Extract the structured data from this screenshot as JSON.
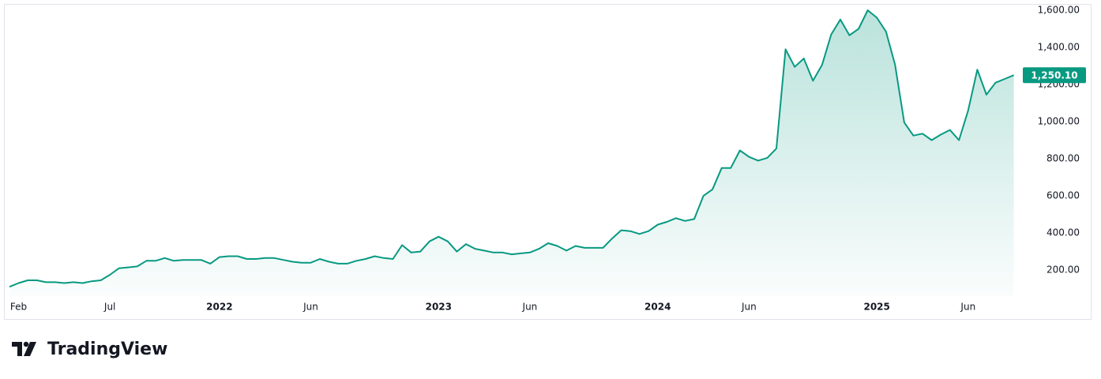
{
  "chart_data": {
    "type": "area",
    "color": "#089981",
    "categories": [
      null,
      "Feb",
      null,
      null,
      null,
      null,
      null,
      null,
      null,
      null,
      null,
      "Jul",
      null,
      null,
      null,
      null,
      null,
      null,
      null,
      null,
      null,
      null,
      null,
      "2022",
      null,
      null,
      null,
      null,
      null,
      null,
      null,
      null,
      null,
      "Jun",
      null,
      null,
      null,
      null,
      null,
      null,
      null,
      null,
      null,
      null,
      null,
      null,
      null,
      "2023",
      null,
      null,
      null,
      null,
      null,
      null,
      null,
      null,
      null,
      "Jun",
      null,
      null,
      null,
      null,
      null,
      null,
      null,
      null,
      null,
      null,
      null,
      null,
      null,
      "2024",
      null,
      null,
      null,
      null,
      null,
      null,
      null,
      null,
      null,
      "Jun",
      null,
      null,
      null,
      null,
      null,
      null,
      null,
      null,
      null,
      null,
      null,
      null,
      null,
      "2025",
      null,
      null,
      null,
      null,
      null,
      null,
      null,
      null,
      null,
      "Jun",
      null,
      null,
      null,
      null,
      null
    ],
    "values": [
      110,
      130,
      145,
      145,
      135,
      135,
      130,
      135,
      130,
      140,
      145,
      175,
      210,
      215,
      220,
      250,
      250,
      265,
      250,
      255,
      255,
      255,
      235,
      270,
      275,
      275,
      260,
      260,
      265,
      265,
      255,
      245,
      240,
      240,
      260,
      245,
      235,
      235,
      250,
      260,
      275,
      265,
      260,
      335,
      295,
      300,
      355,
      380,
      355,
      300,
      340,
      315,
      305,
      295,
      295,
      285,
      290,
      295,
      315,
      345,
      330,
      305,
      330,
      320,
      320,
      320,
      370,
      415,
      410,
      395,
      410,
      445,
      460,
      480,
      465,
      475,
      600,
      635,
      750,
      750,
      845,
      810,
      790,
      805,
      855,
      1390,
      1295,
      1340,
      1220,
      1305,
      1470,
      1550,
      1465,
      1500,
      1600,
      1560,
      1485,
      1305,
      995,
      925,
      935,
      900,
      930,
      955,
      900,
      1060,
      1280,
      1145,
      1210,
      1230,
      1250.1
    ],
    "value_labels": [
      null,
      null,
      null,
      null,
      null,
      null,
      null,
      null,
      null,
      null,
      null,
      null,
      null,
      null,
      null,
      null,
      null,
      null,
      null,
      null,
      null,
      null,
      null,
      null,
      null,
      null,
      null,
      null,
      null,
      null,
      null,
      null,
      null,
      null,
      null,
      null,
      null,
      null,
      null,
      null,
      null,
      null,
      null,
      null,
      null,
      null,
      null,
      null,
      null,
      null,
      null,
      null,
      null,
      null,
      null,
      null,
      null,
      null,
      null,
      null,
      null,
      null,
      null,
      null,
      null,
      null,
      null,
      null,
      null,
      null,
      null,
      null,
      null,
      null,
      null,
      null,
      null,
      null,
      null,
      null,
      null,
      null,
      null,
      null,
      null,
      null,
      null,
      null,
      null,
      null,
      null,
      null,
      null,
      null,
      null,
      null,
      null,
      null,
      null,
      null,
      null,
      null,
      null,
      null,
      null,
      null,
      null,
      null,
      null,
      null,
      "1,250.10"
    ],
    "ylim": [
      60,
      1634
    ],
    "yticks": [
      {
        "value": 200,
        "label": "200.00"
      },
      {
        "value": 400,
        "label": "400.00"
      },
      {
        "value": 600,
        "label": "600.00"
      },
      {
        "value": 800,
        "label": "800.00"
      },
      {
        "value": 1000,
        "label": "1,000.00"
      },
      {
        "value": 1200,
        "label": "1,200.00"
      },
      {
        "value": 1400,
        "label": "1,400.00"
      },
      {
        "value": 1600,
        "label": "1,600.00"
      }
    ],
    "grid": false
  },
  "branding": "TradingView"
}
